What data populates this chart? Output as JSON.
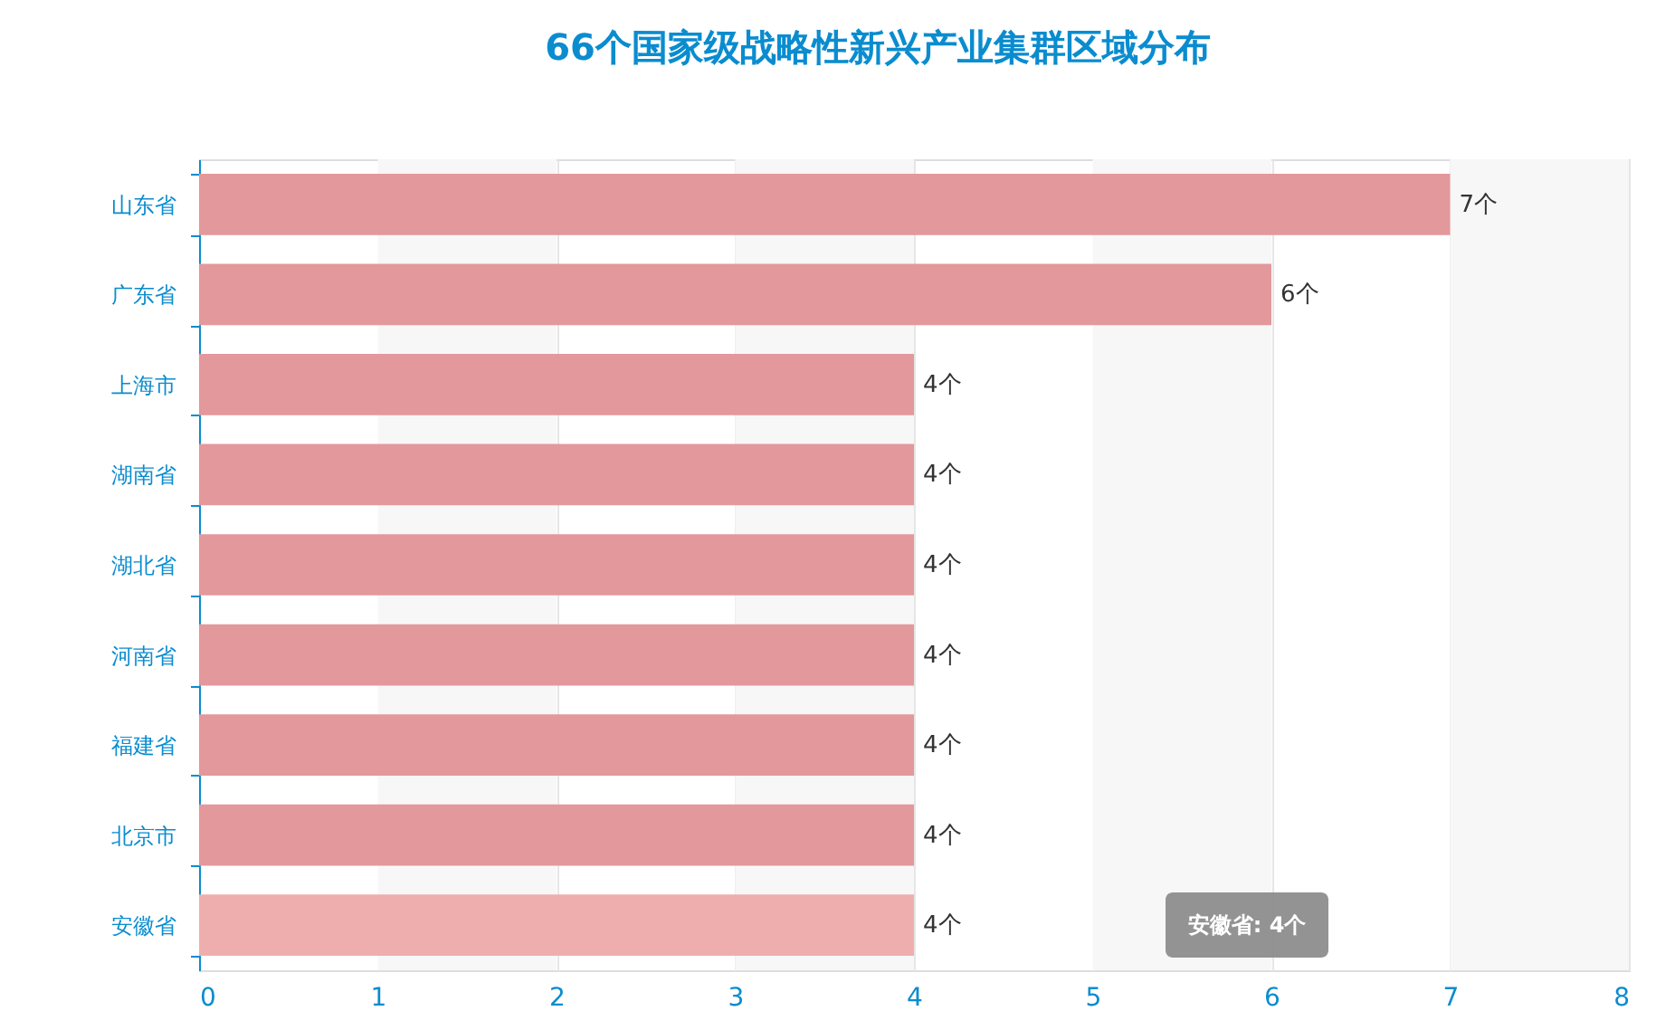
{
  "chart_data": {
    "type": "bar",
    "orientation": "horizontal",
    "title": "66个国家级战略性新兴产业集群区域分布",
    "categories": [
      "山东省",
      "广东省",
      "上海市",
      "湖南省",
      "湖北省",
      "河南省",
      "福建省",
      "北京市",
      "安徽省"
    ],
    "values": [
      7,
      6,
      4,
      4,
      4,
      4,
      4,
      4,
      4
    ],
    "colors": [
      "#e3989b",
      "#e3989b",
      "#e3989b",
      "#e3989b",
      "#e3989b",
      "#e3989b",
      "#e3989b",
      "#e3989b",
      "#efaeae"
    ],
    "value_labels": [
      "7个",
      "6个",
      "4个",
      "4个",
      "4个",
      "4个",
      "4个",
      "4个",
      "4个"
    ],
    "xlim": [
      0,
      8
    ],
    "xticks": [
      0,
      1,
      2,
      3,
      4,
      5,
      6,
      7,
      8
    ],
    "grid": "x",
    "annotations": [
      "安徽省: 4个"
    ]
  }
}
